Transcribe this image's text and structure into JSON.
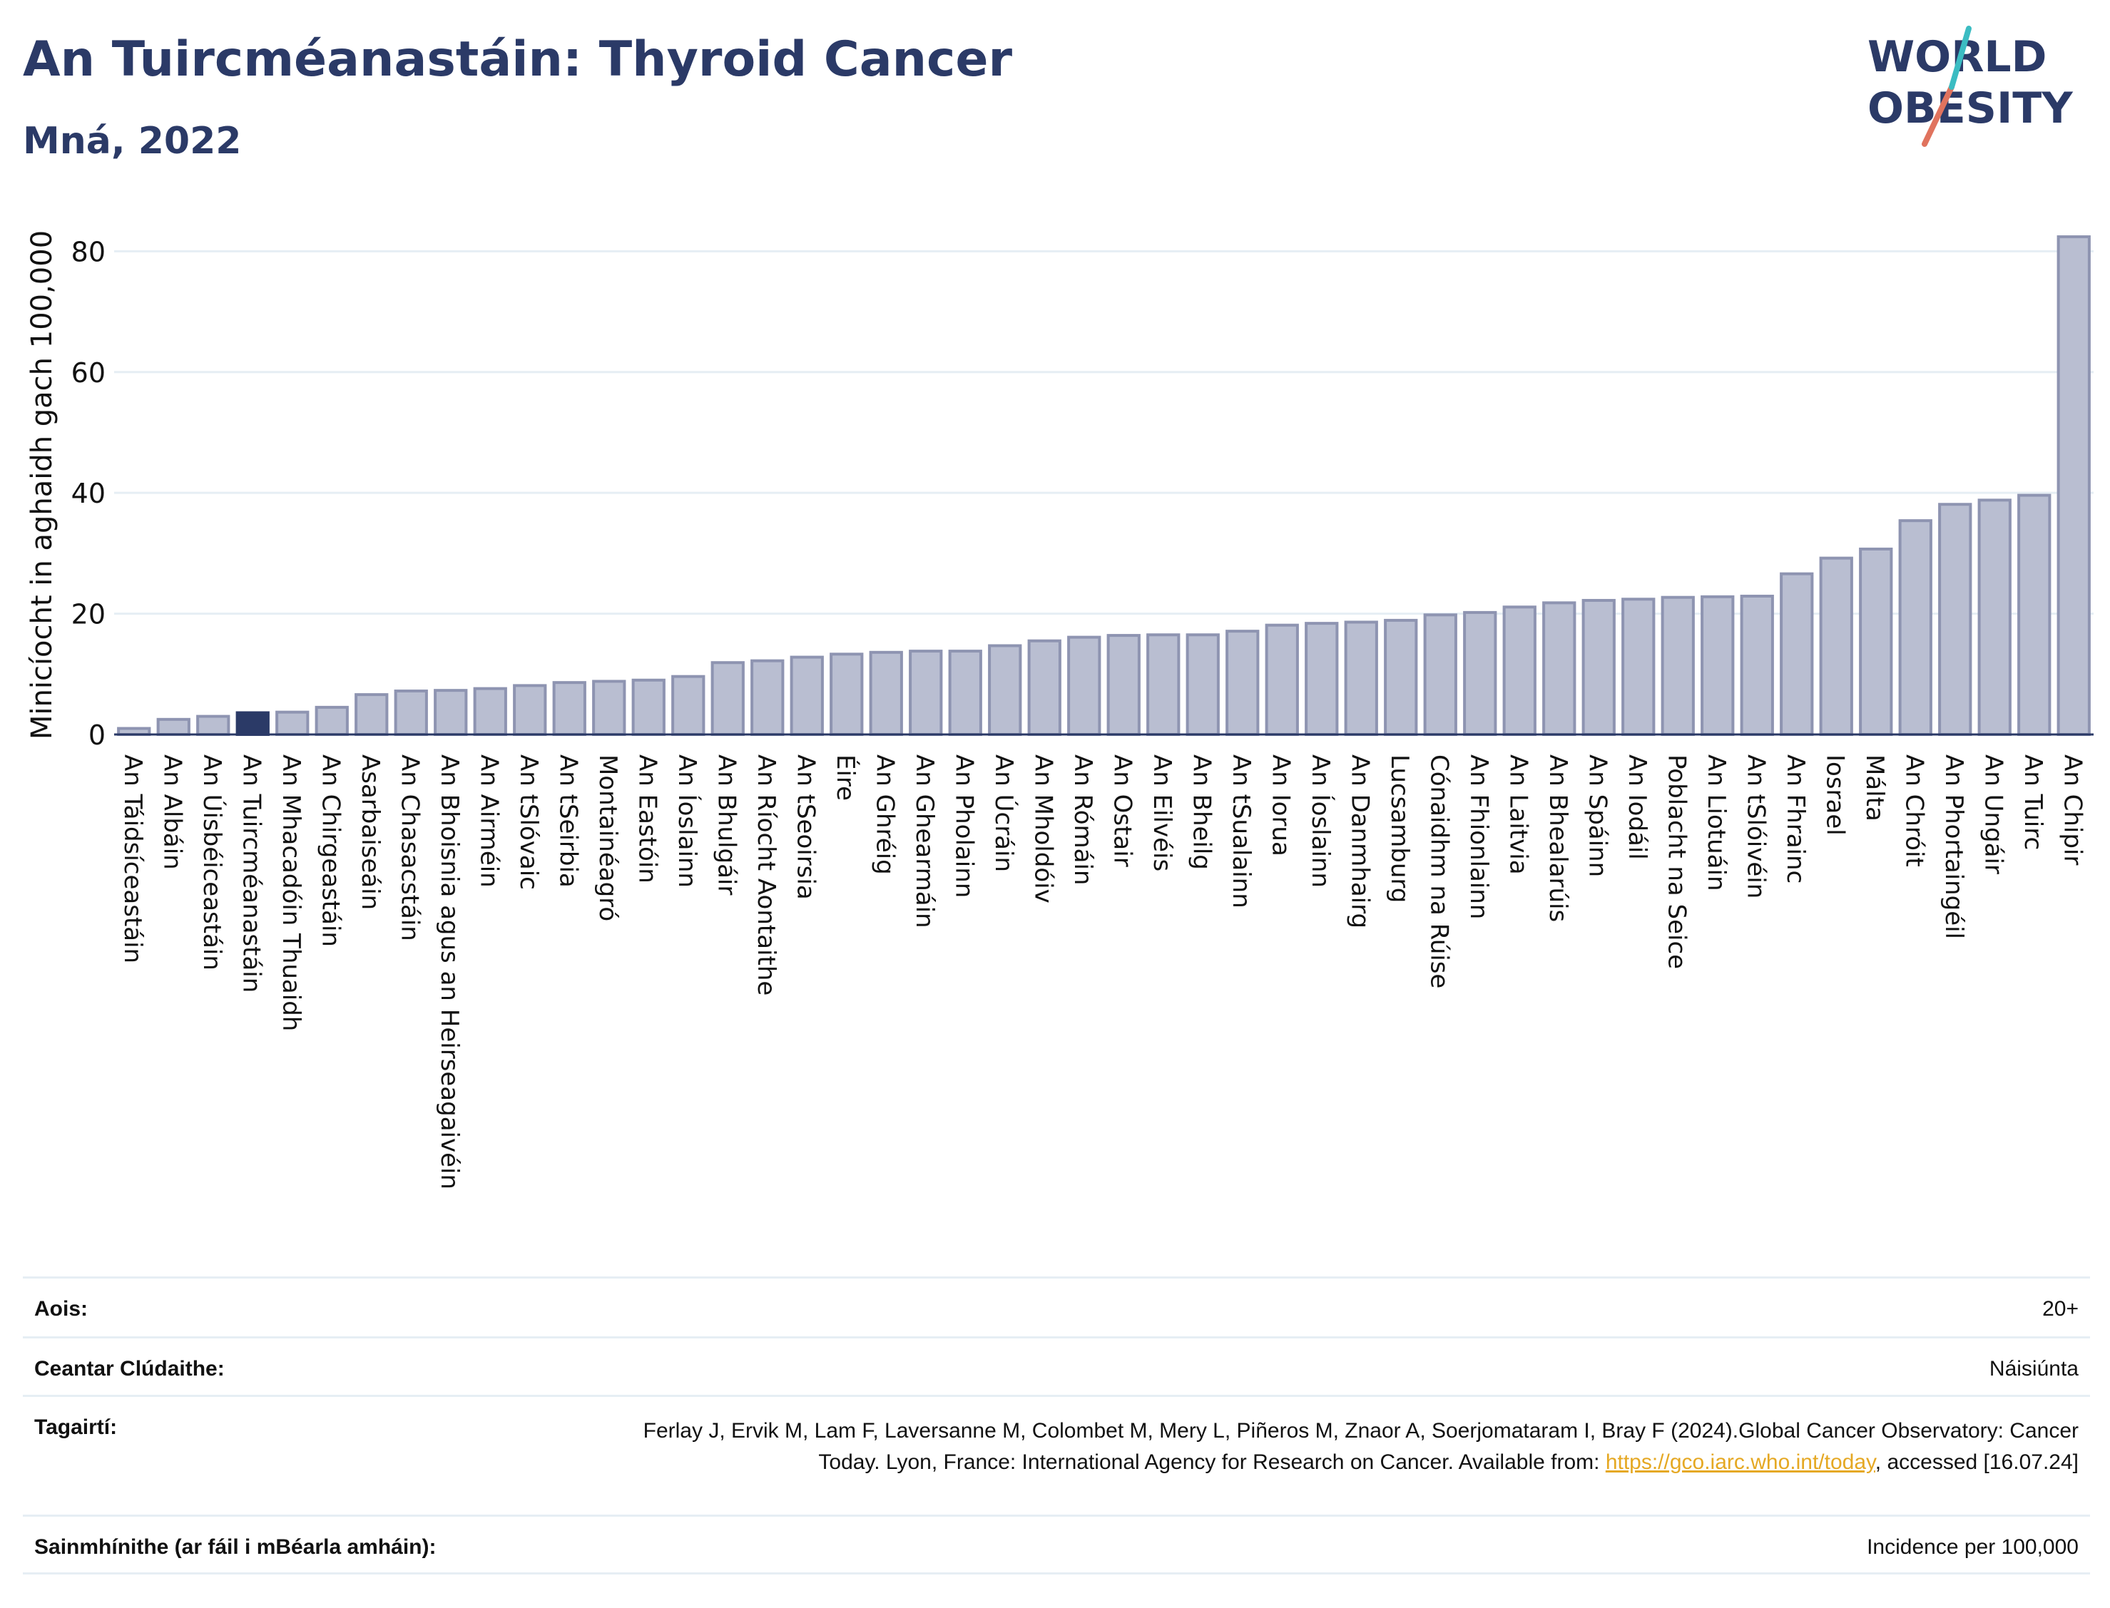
{
  "header": {
    "title": "An Tuircméanastáin: Thyroid Cancer",
    "subtitle": "Mná, 2022"
  },
  "logo": {
    "line1": "WORLD",
    "line2": "OBESITY"
  },
  "colors": {
    "bar": "#b9bed1",
    "bar_border": "#8e94b1",
    "highlight": "#2b3a67",
    "title": "#2b3a67",
    "grid": "#e6eef4"
  },
  "chart_data": {
    "type": "bar",
    "ylabel": "Minicíocht in aghaidh gach 100,000",
    "ylim": [
      0,
      85
    ],
    "yticks": [
      0,
      20,
      40,
      60,
      80
    ],
    "grid": true,
    "highlight": "An Tuircméanastáin",
    "categories": [
      "An Táidsíceastáin",
      "An Albáin",
      "An Úisbéiceastáin",
      "An Tuircméanastáin",
      "An Mhacadóin Thuaidh",
      "An Chirgeastáin",
      "Asarbaiseáin",
      "An Chasacstáin",
      "An Bhoisnia agus an Heirseagaivéin",
      "An Airméin",
      "An tSlóvaic",
      "An tSeirbia",
      "Montainéagró",
      "An Eastóin",
      "An Íoslainn",
      "An Bhulgáir",
      "An Ríocht Aontaithe",
      "An tSeoirsia",
      "Éire",
      "An Ghréig",
      "An Ghearmáin",
      "An Pholainn",
      "An Úcráin",
      "An Mholdóiv",
      "An Rómáin",
      "An Ostair",
      "An Eilvéis",
      "An Bheilg",
      "An tSualainn",
      "An Iorua",
      "An Íoslainn",
      "An Danmhairg",
      "Lucsamburg",
      "Cónaidhm na Rúise",
      "An Fhionlainn",
      "An Laitvia",
      "An Bhealarúis",
      "An Spáinn",
      "An Iodáil",
      "Poblacht na Seice",
      "An Liotuáin",
      "An tSlóivéin",
      "An Fhrainc",
      "Iosrael",
      "Málta",
      "An Chróit",
      "An Phortaingéil",
      "An Ungáir",
      "An Tuirc",
      "An Chipir"
    ],
    "values": [
      1.0,
      2.5,
      3.0,
      3.6,
      3.7,
      4.5,
      6.6,
      7.2,
      7.3,
      7.6,
      8.1,
      8.6,
      8.8,
      9.0,
      9.6,
      11.9,
      12.2,
      12.8,
      13.3,
      13.6,
      13.8,
      13.8,
      14.7,
      15.5,
      16.1,
      16.4,
      16.5,
      16.5,
      17.1,
      18.1,
      18.4,
      18.6,
      18.9,
      19.8,
      20.2,
      21.1,
      21.8,
      22.2,
      22.4,
      22.7,
      22.8,
      22.9,
      26.6,
      29.2,
      30.7,
      35.4,
      38.1,
      38.8,
      39.6,
      82.4
    ]
  },
  "meta": {
    "rows": [
      {
        "key": "Aois:",
        "value": "20+"
      },
      {
        "key": "Ceantar Clúdaithe:",
        "value": "Náisiúnta"
      },
      {
        "key": "Tagairtí:",
        "value_pre": "Ferlay J, Ervik M, Lam F, Laversanne M, Colombet M, Mery L, Piñeros M, Znaor A, Soerjomataram I, Bray F (2024).Global Cancer Observatory: Cancer Today. Lyon, France: International Agency for Research on Cancer. Available from: ",
        "link": "https://gco.iarc.who.int/today",
        "value_post": ", accessed [16.07.24]"
      },
      {
        "key": "Sainmhínithe (ar fáil i mBéarla amháin):",
        "value": "Incidence per 100,000"
      }
    ]
  }
}
